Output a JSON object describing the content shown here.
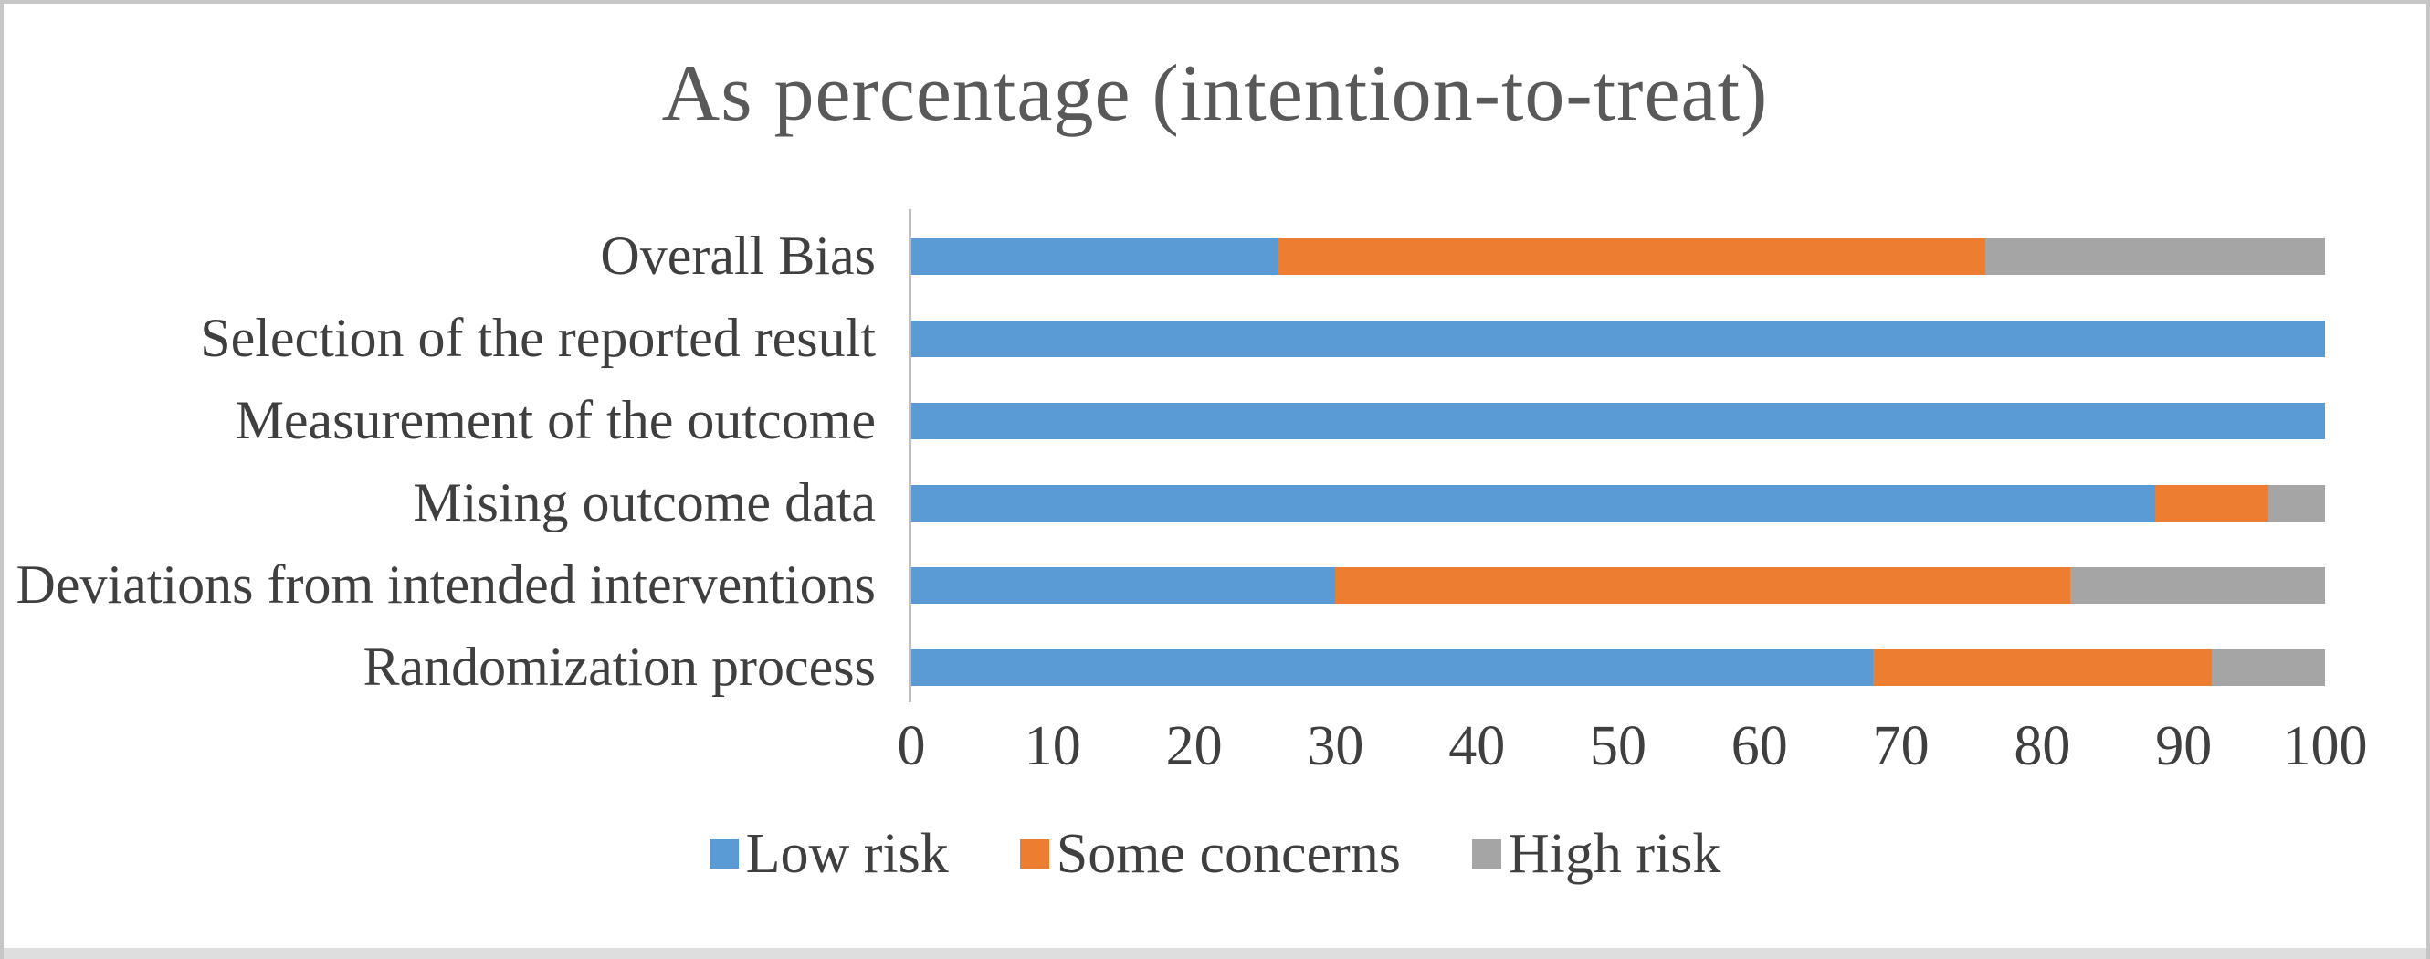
{
  "frame": {
    "background": "#ffffff",
    "border_color": "#c6c6c6",
    "bottom_strip_color": "#dedede",
    "axis_line_color": "#bfbfbf",
    "title_color": "#595959",
    "label_color": "#3f3f3f"
  },
  "chart_data": {
    "type": "bar",
    "orientation": "horizontal",
    "stacked": true,
    "grid": false,
    "title": "As percentage (intention-to-treat)",
    "categories": [
      "Overall Bias",
      "Selection of the reported result",
      "Measurement of the outcome",
      "Mising outcome data",
      "Deviations from intended interventions",
      "Randomization process"
    ],
    "series": [
      {
        "name": "Low risk",
        "color": "#5B9BD5",
        "values": [
          26,
          100,
          100,
          88,
          30,
          68
        ]
      },
      {
        "name": "Some concerns",
        "color": "#ED7D31",
        "values": [
          50,
          0,
          0,
          8,
          52,
          24
        ]
      },
      {
        "name": "High risk",
        "color": "#A5A5A5",
        "values": [
          24,
          0,
          0,
          4,
          18,
          8
        ]
      }
    ],
    "x_axis": {
      "min": 0,
      "max": 100,
      "ticks": [
        0,
        10,
        20,
        30,
        40,
        50,
        60,
        70,
        80,
        90,
        100
      ]
    },
    "legend": {
      "position": "bottom",
      "entries": [
        "Low risk",
        "Some concerns",
        "High risk"
      ]
    }
  }
}
